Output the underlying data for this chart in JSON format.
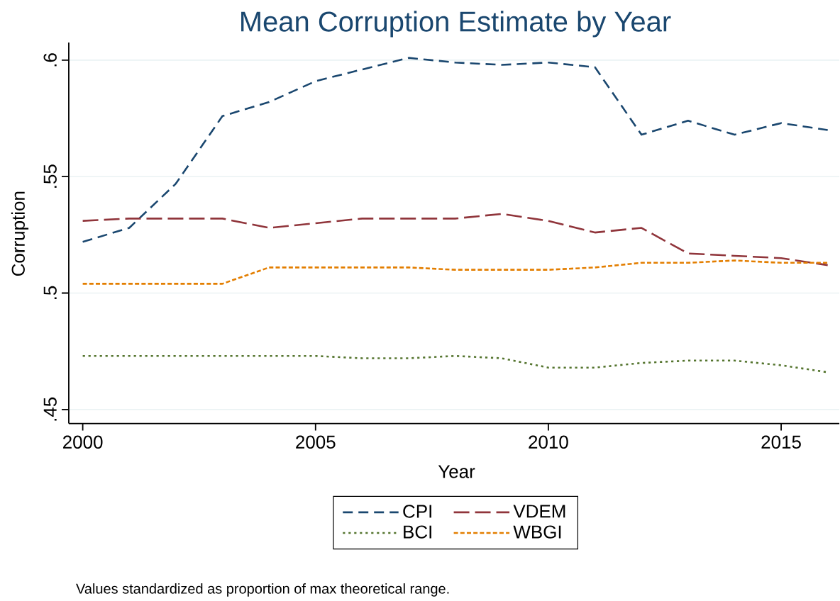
{
  "chart_data": {
    "type": "line",
    "title": "Mean Corruption Estimate by Year",
    "xlabel": "Year",
    "ylabel": "Corruption",
    "x": [
      2000,
      2001,
      2002,
      2003,
      2004,
      2005,
      2006,
      2007,
      2008,
      2009,
      2010,
      2011,
      2012,
      2013,
      2014,
      2015,
      2016
    ],
    "series": [
      {
        "name": "CPI",
        "color": "#1a476f",
        "line_style": "dashed",
        "values": [
          0.522,
          0.528,
          0.547,
          0.576,
          0.582,
          0.591,
          0.596,
          0.601,
          0.599,
          0.598,
          0.599,
          0.597,
          0.568,
          0.574,
          0.568,
          0.573,
          0.57
        ]
      },
      {
        "name": "VDEM",
        "color": "#90353b",
        "line_style": "dashed",
        "values": [
          0.531,
          0.532,
          0.532,
          0.532,
          0.528,
          0.53,
          0.532,
          0.532,
          0.532,
          0.534,
          0.531,
          0.526,
          0.528,
          0.517,
          0.516,
          0.515,
          0.512
        ]
      },
      {
        "name": "BCI",
        "color": "#55752f",
        "line_style": "dotted",
        "values": [
          0.473,
          0.473,
          0.473,
          0.473,
          0.473,
          0.473,
          0.472,
          0.472,
          0.473,
          0.472,
          0.468,
          0.468,
          0.47,
          0.471,
          0.471,
          0.469,
          0.466
        ]
      },
      {
        "name": "WBGI",
        "color": "#e37e00",
        "line_style": "dashed",
        "values": [
          0.504,
          0.504,
          0.504,
          0.504,
          0.511,
          0.511,
          0.511,
          0.511,
          0.51,
          0.51,
          0.51,
          0.511,
          0.513,
          0.513,
          0.514,
          0.513,
          0.513
        ]
      }
    ],
    "xlim": [
      1999.7,
      2016.25
    ],
    "ylim": [
      0.444,
      0.6076
    ],
    "xticks": [
      2000,
      2005,
      2010,
      2015
    ],
    "yticks": [
      {
        "value": 0.45,
        "label": ".45"
      },
      {
        "value": 0.5,
        "label": ".5"
      },
      {
        "value": 0.55,
        "label": ".55"
      },
      {
        "value": 0.6,
        "label": ".6"
      }
    ],
    "grid": "y",
    "legend": "bottom",
    "marker": "none",
    "annotations": [
      "Values standardized as proportion of max theoretical range."
    ]
  }
}
